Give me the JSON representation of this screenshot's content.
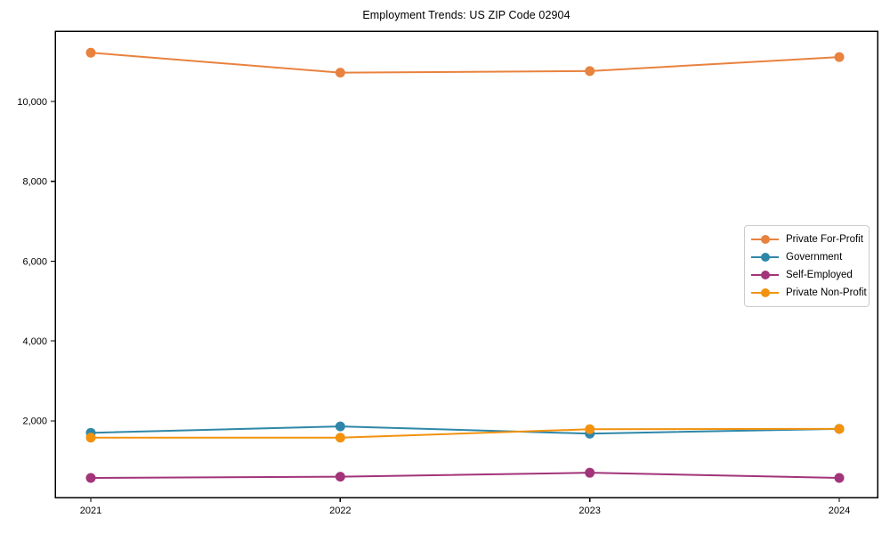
{
  "chart_data": {
    "type": "line",
    "title": "Employment Trends: US ZIP Code 02904",
    "categories": [
      "2021",
      "2022",
      "2023",
      "2024"
    ],
    "series": [
      {
        "name": "Private For-Profit",
        "color": "#e8823e",
        "values": [
          11220,
          10720,
          10760,
          11110
        ]
      },
      {
        "name": "Government",
        "color": "#2e87a8",
        "values": [
          1700,
          1860,
          1680,
          1800
        ]
      },
      {
        "name": "Self-Employed",
        "color": "#a23479",
        "values": [
          570,
          600,
          700,
          570
        ]
      },
      {
        "name": "Private Non-Profit",
        "color": "#f2920e",
        "values": [
          1580,
          1580,
          1790,
          1800
        ]
      }
    ],
    "xlabel": "",
    "ylabel": "",
    "ylim": [
      80,
      11760
    ],
    "yticks": [
      2000,
      4000,
      6000,
      8000,
      10000
    ],
    "ytick_labels": [
      "2,000",
      "4,000",
      "6,000",
      "8,000",
      "10,000"
    ],
    "grid": false,
    "legend_position": "center-right",
    "marker": "circle",
    "frame_color": "#000000",
    "text_color": "#000000"
  }
}
